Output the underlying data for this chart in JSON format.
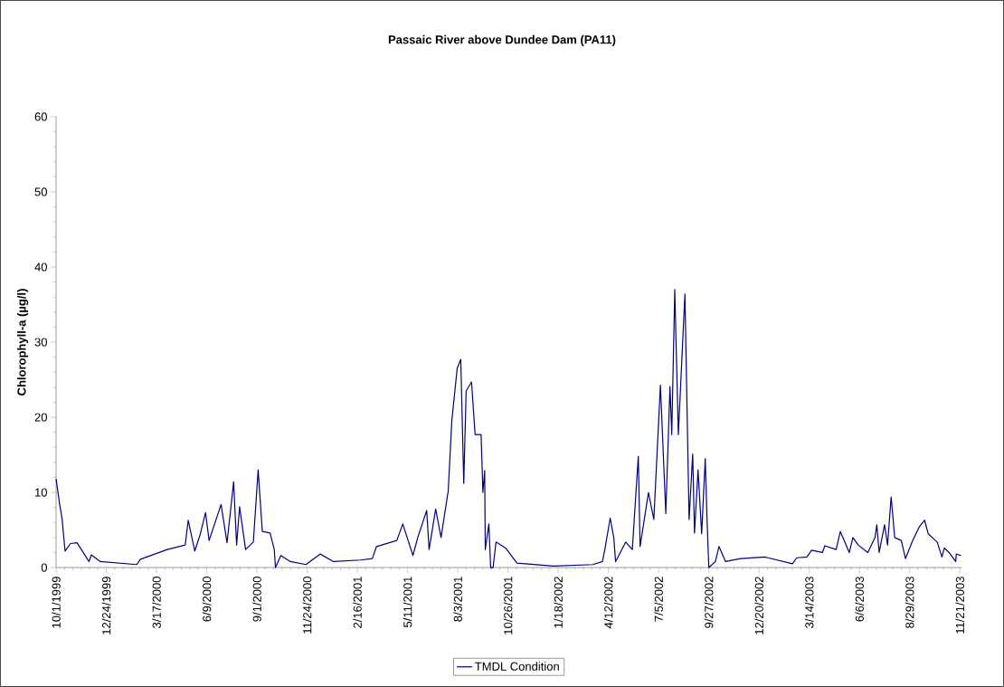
{
  "chart_data": {
    "type": "line",
    "title": "Passaic River above Dundee Dam (PA11)",
    "ylabel": "Chlorophyll-a (µg/l)",
    "x": [
      "1999-10-01",
      "1999-10-07",
      "1999-10-11",
      "1999-10-16",
      "1999-10-25",
      "1999-11-05",
      "1999-11-25",
      "1999-11-29",
      "1999-12-14",
      "2000-02-13",
      "2000-02-19",
      "2000-04-04",
      "2000-05-04",
      "2000-05-09",
      "2000-05-20",
      "2000-05-29",
      "2000-06-07",
      "2000-06-13",
      "2000-07-03",
      "2000-07-13",
      "2000-07-24",
      "2000-07-29",
      "2000-08-03",
      "2000-08-13",
      "2000-08-26",
      "2000-09-03",
      "2000-09-10",
      "2000-09-23",
      "2000-09-30",
      "2000-10-02",
      "2000-10-11",
      "2000-10-27",
      "2000-11-22",
      "2000-12-16",
      "2001-01-07",
      "2001-02-21",
      "2001-03-13",
      "2001-03-20",
      "2001-04-23",
      "2001-05-03",
      "2001-05-20",
      "2001-05-28",
      "2001-06-12",
      "2001-06-16",
      "2001-06-27",
      "2001-07-06",
      "2001-07-18",
      "2001-07-24",
      "2001-08-02",
      "2001-08-08",
      "2001-08-13",
      "2001-08-17",
      "2001-08-26",
      "2001-09-01",
      "2001-09-11",
      "2001-09-14",
      "2001-09-17",
      "2001-09-18",
      "2001-09-24",
      "2001-09-27",
      "2001-10-01",
      "2001-10-06",
      "2001-10-22",
      "2001-11-10",
      "2002-01-10",
      "2002-03-17",
      "2002-04-02",
      "2002-04-06",
      "2002-04-15",
      "2002-04-21",
      "2002-04-24",
      "2002-05-11",
      "2002-05-22",
      "2002-06-01",
      "2002-06-04",
      "2002-06-18",
      "2002-06-27",
      "2002-07-08",
      "2002-07-17",
      "2002-07-24",
      "2002-07-27",
      "2002-08-01",
      "2002-08-07",
      "2002-08-18",
      "2002-08-25",
      "2002-08-31",
      "2002-09-03",
      "2002-09-09",
      "2002-09-15",
      "2002-09-21",
      "2002-09-24",
      "2002-09-27",
      "2002-10-08",
      "2002-10-14",
      "2002-10-25",
      "2002-11-19",
      "2002-12-30",
      "2003-01-04",
      "2003-02-14",
      "2003-02-21",
      "2003-03-10",
      "2003-03-18",
      "2003-04-05",
      "2003-04-09",
      "2003-04-28",
      "2003-05-05",
      "2003-05-20",
      "2003-05-26",
      "2003-06-04",
      "2003-06-20",
      "2003-07-02",
      "2003-07-05",
      "2003-07-09",
      "2003-07-18",
      "2003-07-23",
      "2003-07-29",
      "2003-08-04",
      "2003-08-15",
      "2003-08-22",
      "2003-09-03",
      "2003-09-14",
      "2003-09-23",
      "2003-09-29",
      "2003-10-14",
      "2003-10-22",
      "2003-10-26",
      "2003-11-03",
      "2003-11-14",
      "2003-11-15",
      "2003-11-23"
    ],
    "series": [
      {
        "name": "TMDL Condition",
        "color": "#000080",
        "values": [
          11.8,
          8.4,
          6.5,
          2.2,
          3.2,
          3.3,
          0.8,
          1.7,
          0.8,
          0.4,
          1.1,
          2.4,
          3.0,
          6.3,
          2.2,
          4.4,
          7.3,
          3.6,
          8.4,
          3.3,
          11.4,
          3.0,
          8.1,
          2.4,
          3.4,
          13.0,
          4.8,
          4.6,
          2.4,
          0,
          1.6,
          0.8,
          0.4,
          1.8,
          0.8,
          1.0,
          1.2,
          2.8,
          3.6,
          5.8,
          1.6,
          4.0,
          7.6,
          2.4,
          7.8,
          4.0,
          10.2,
          19.5,
          26.5,
          27.7,
          11.2,
          23.5,
          24.7,
          17.7,
          17.7,
          10,
          12.9,
          2.4,
          5.8,
          0,
          0,
          3.4,
          2.6,
          0.6,
          0.2,
          0.4,
          0.8,
          2.4,
          6.6,
          4.0,
          0.8,
          3.4,
          2.4,
          14.8,
          2.8,
          10.0,
          6.4,
          24.3,
          7.2,
          24.1,
          17.7,
          37.0,
          17.7,
          36.4,
          6.4,
          15.1,
          4.6,
          13.0,
          4.5,
          14.5,
          6.4,
          0,
          0.8,
          2.8,
          0.8,
          1.2,
          1.4,
          1.3,
          0.5,
          1.3,
          1.4,
          2.3,
          2.0,
          2.9,
          2.4,
          4.8,
          2.0,
          4.0,
          3.0,
          2.0,
          4.0,
          5.7,
          2.0,
          5.7,
          3.0,
          9.4,
          4.0,
          3.6,
          1.2,
          3.6,
          5.4,
          6.3,
          4.5,
          3.4,
          1.4,
          2.6,
          2.0,
          0.8,
          1.8,
          1.6
        ]
      }
    ],
    "xlim": [
      "1999-10-01",
      "2003-11-24"
    ],
    "xticks": [
      {
        "value": "1999-10-01",
        "label": "10/1/1999"
      },
      {
        "value": "1999-12-24",
        "label": "12/24/1999"
      },
      {
        "value": "2000-03-17",
        "label": "3/17/2000"
      },
      {
        "value": "2000-06-09",
        "label": "6/9/2000"
      },
      {
        "value": "2000-09-01",
        "label": "9/1/2000"
      },
      {
        "value": "2000-11-24",
        "label": "11/24/2000"
      },
      {
        "value": "2001-02-16",
        "label": "2/16/2001"
      },
      {
        "value": "2001-05-11",
        "label": "5/11/2001"
      },
      {
        "value": "2001-08-03",
        "label": "8/3/2001"
      },
      {
        "value": "2001-10-26",
        "label": "10/26/2001"
      },
      {
        "value": "2002-01-18",
        "label": "1/18/2002"
      },
      {
        "value": "2002-04-12",
        "label": "4/12/2002"
      },
      {
        "value": "2002-07-05",
        "label": "7/5/2002"
      },
      {
        "value": "2002-09-27",
        "label": "9/27/2002"
      },
      {
        "value": "2002-12-20",
        "label": "12/20/2002"
      },
      {
        "value": "2003-03-14",
        "label": "3/14/2003"
      },
      {
        "value": "2003-06-06",
        "label": "6/6/2003"
      },
      {
        "value": "2003-08-29",
        "label": "8/29/2003"
      },
      {
        "value": "2003-11-21",
        "label": "11/21/2003"
      }
    ],
    "ylim": [
      0,
      60
    ],
    "yticks": [
      0,
      10,
      20,
      30,
      40,
      50,
      60
    ],
    "grid": false,
    "legend": "bottom",
    "marker": "none",
    "line_style": "solid"
  }
}
